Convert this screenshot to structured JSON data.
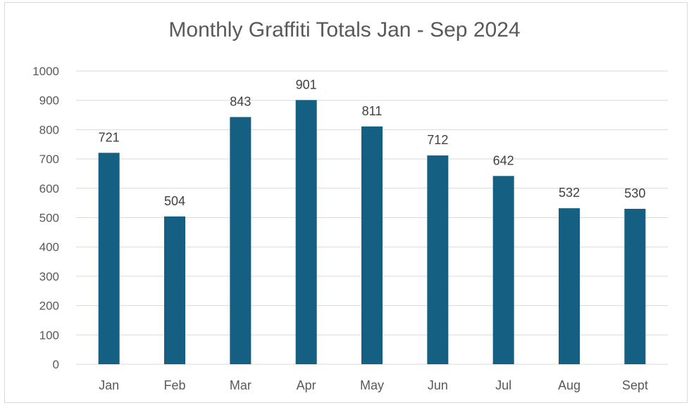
{
  "chart_data": {
    "type": "bar",
    "title": "Monthly Graffiti Totals Jan - Sep 2024",
    "xlabel": "",
    "ylabel": "",
    "categories": [
      "Jan",
      "Feb",
      "Mar",
      "Apr",
      "May",
      "Jun",
      "Jul",
      "Aug",
      "Sept"
    ],
    "values": [
      721,
      504,
      843,
      901,
      811,
      712,
      642,
      532,
      530
    ],
    "ylim": [
      0,
      1000
    ],
    "yticks": [
      0,
      100,
      200,
      300,
      400,
      500,
      600,
      700,
      800,
      900,
      1000
    ],
    "grid": true,
    "legend": "none",
    "data_labels": true,
    "colors": {
      "bar": "#156082",
      "grid": "#d9d9d9",
      "text": "#595959",
      "label": "#404040"
    }
  }
}
